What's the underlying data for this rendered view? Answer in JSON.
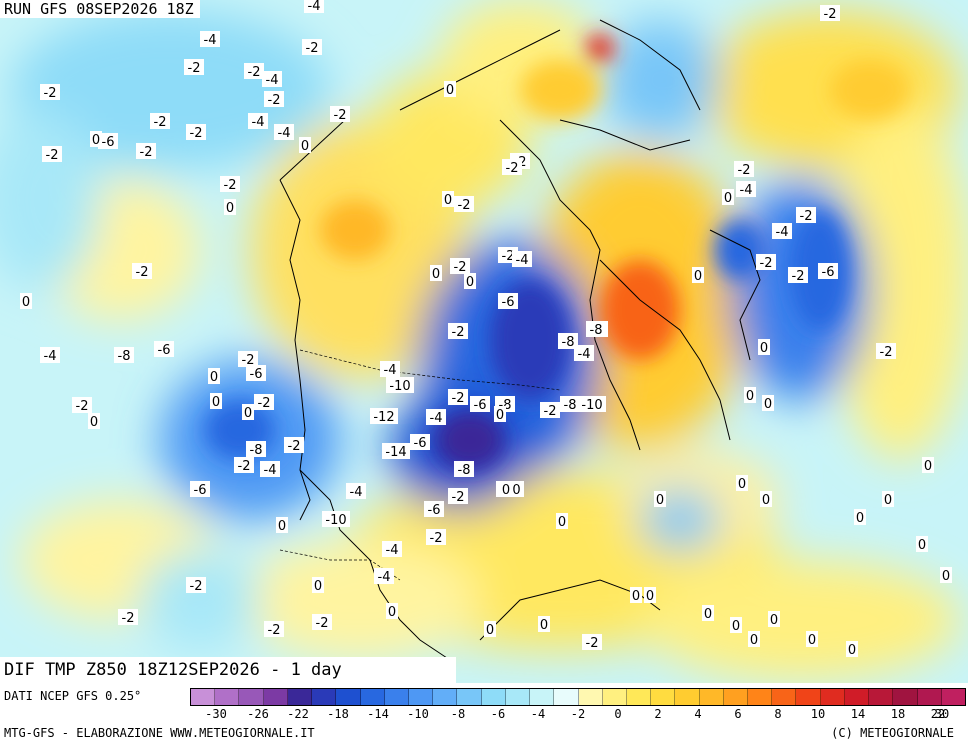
{
  "header": {
    "run_title": "RUN GFS 08SEP2026 18Z"
  },
  "map_title": "DIF TMP Z850 18Z12SEP2026 - 1 day",
  "footer": {
    "source": "DATI NCEP GFS 0.25°",
    "credits": "MTG-GFS - ELABORAZIONE WWW.METEOGIORNALE.IT",
    "copyright": "(C) METEOGIORNALE"
  },
  "colorbar": {
    "colors": [
      "#c890d8",
      "#b070c8",
      "#9858b8",
      "#7c3aa4",
      "#3a2898",
      "#2a3ab8",
      "#1e50d0",
      "#2868e0",
      "#3a80ec",
      "#4e98f4",
      "#62aef8",
      "#78c6f8",
      "#8edcf8",
      "#a8e8f8",
      "#c8f4f8",
      "#e8fcfc",
      "#fff8b0",
      "#fff080",
      "#ffe858",
      "#ffdc40",
      "#ffcc30",
      "#ffb828",
      "#ffa020",
      "#ff8418",
      "#f86418",
      "#f04418",
      "#e02c20",
      "#d01c28",
      "#b81838",
      "#a01440",
      "#b01850",
      "#c02060"
    ],
    "tick_labels": [
      "-30",
      "-26",
      "-22",
      "-18",
      "-14",
      "-10",
      "-8",
      "-6",
      "-4",
      "-2",
      "0",
      "2",
      "4",
      "6",
      "8",
      "10",
      "14",
      "18",
      "22",
      "30"
    ]
  },
  "field_labels": [
    "-4",
    "-2",
    "-4",
    "-2",
    "-2",
    "-2",
    "-2",
    "-4",
    "-2",
    "0",
    "-2",
    "-4",
    "-6",
    "0",
    "-2",
    "-2",
    "-4",
    "-2",
    "-2",
    "0",
    "-2",
    "-2",
    "-4",
    "-2",
    "-2",
    "0",
    "-2",
    "0",
    "-2",
    "-4",
    "-2",
    "-2",
    "-2",
    "0",
    "0",
    "-2",
    "0",
    "-6",
    "-2",
    "-4",
    "0",
    "-6",
    "-2",
    "-8",
    "-4",
    "-2",
    "-4",
    "-8",
    "-6",
    "0",
    "-4",
    "-10",
    "-6",
    "0",
    "0",
    "-2",
    "-2",
    "-4",
    "-6",
    "-8",
    "-2",
    "0",
    "-8",
    "-10",
    "-12",
    "-6",
    "-14",
    "-8",
    "-2",
    "-2",
    "-4",
    "-8",
    "-2",
    "-10",
    "-4",
    "-6",
    "-6",
    "-10",
    "0",
    "-2",
    "-4",
    "0",
    "-4",
    "-2",
    "-2",
    "-2",
    "-2",
    "0",
    "0",
    "0",
    "-2",
    "0",
    "0",
    "0",
    "0",
    "0",
    "0",
    "0",
    "0",
    "0",
    "0",
    "0",
    "0",
    "0",
    "0",
    "0",
    "0",
    "0",
    "0",
    "-2",
    "0",
    "-8",
    "0",
    "0",
    "0",
    "-2",
    "0",
    "0",
    "-2"
  ]
}
